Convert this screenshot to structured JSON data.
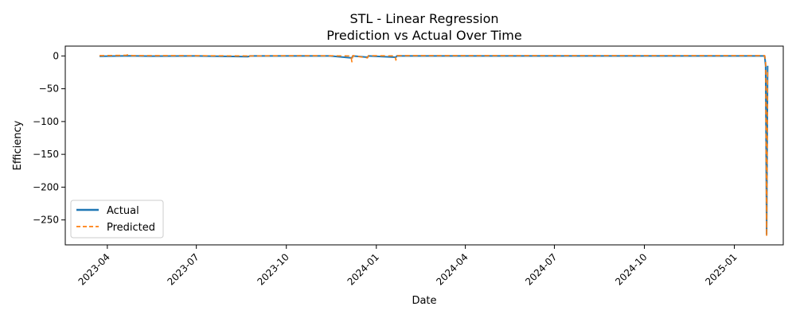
{
  "chart_data": {
    "type": "line",
    "title": "STL - Linear Regression",
    "subtitle": "Prediction vs Actual Over Time",
    "xlabel": "Date",
    "ylabel": "Efficiency",
    "xlim": [
      "2023-02-17",
      "2025-02-20"
    ],
    "ylim": [
      -288,
      15
    ],
    "x_ticks": [
      "2023-04",
      "2023-07",
      "2023-10",
      "2024-01",
      "2024-04",
      "2024-07",
      "2024-10",
      "2025-01"
    ],
    "y_ticks": [
      0,
      -50,
      -100,
      -150,
      -200,
      -250
    ],
    "legend_position": "lower-left",
    "grid": false,
    "series": [
      {
        "name": "Actual",
        "color": "#1f77b4",
        "style": "solid",
        "points": [
          [
            "2023-03-24",
            -0.5
          ],
          [
            "2023-04-23",
            0.2
          ],
          [
            "2023-05-15",
            -0.3
          ],
          [
            "2023-06-30",
            0.0
          ],
          [
            "2023-08-23",
            -1.0
          ],
          [
            "2023-08-25",
            0.0
          ],
          [
            "2023-10-01",
            0.0
          ],
          [
            "2023-11-15",
            0.0
          ],
          [
            "2023-12-07",
            -3.0
          ],
          [
            "2023-12-08",
            0.0
          ],
          [
            "2023-12-23",
            -2.0
          ],
          [
            "2023-12-24",
            0.0
          ],
          [
            "2024-01-21",
            -2.0
          ],
          [
            "2024-01-22",
            0.0
          ],
          [
            "2024-04-01",
            0.0
          ],
          [
            "2024-07-01",
            0.0
          ],
          [
            "2024-10-01",
            0.0
          ],
          [
            "2025-01-01",
            0.0
          ],
          [
            "2025-02-01",
            0.0
          ],
          [
            "2025-02-02",
            -15.0
          ],
          [
            "2025-02-03",
            -272.0
          ],
          [
            "2025-02-04",
            -15.0
          ]
        ]
      },
      {
        "name": "Predicted",
        "color": "#ff7f0e",
        "style": "dashed",
        "points": [
          [
            "2023-03-24",
            0.5
          ],
          [
            "2023-04-20",
            1.0
          ],
          [
            "2023-04-23",
            2.0
          ],
          [
            "2023-04-26",
            0.5
          ],
          [
            "2023-06-15",
            0.5
          ],
          [
            "2023-08-22",
            0.0
          ],
          [
            "2023-08-23",
            -2.5
          ],
          [
            "2023-08-25",
            0.0
          ],
          [
            "2023-10-15",
            0.5
          ],
          [
            "2023-12-06",
            0.0
          ],
          [
            "2023-12-07",
            -9.0
          ],
          [
            "2023-12-08",
            0.5
          ],
          [
            "2023-12-23",
            -3.0
          ],
          [
            "2023-12-24",
            0.5
          ],
          [
            "2024-01-20",
            0.0
          ],
          [
            "2024-01-21",
            -6.5
          ],
          [
            "2024-01-22",
            0.5
          ],
          [
            "2024-06-01",
            0.5
          ],
          [
            "2024-12-01",
            0.5
          ],
          [
            "2025-02-01",
            0.5
          ],
          [
            "2025-02-02",
            -10.0
          ],
          [
            "2025-02-03",
            -275.0
          ],
          [
            "2025-02-04",
            -20.0
          ]
        ]
      }
    ]
  }
}
